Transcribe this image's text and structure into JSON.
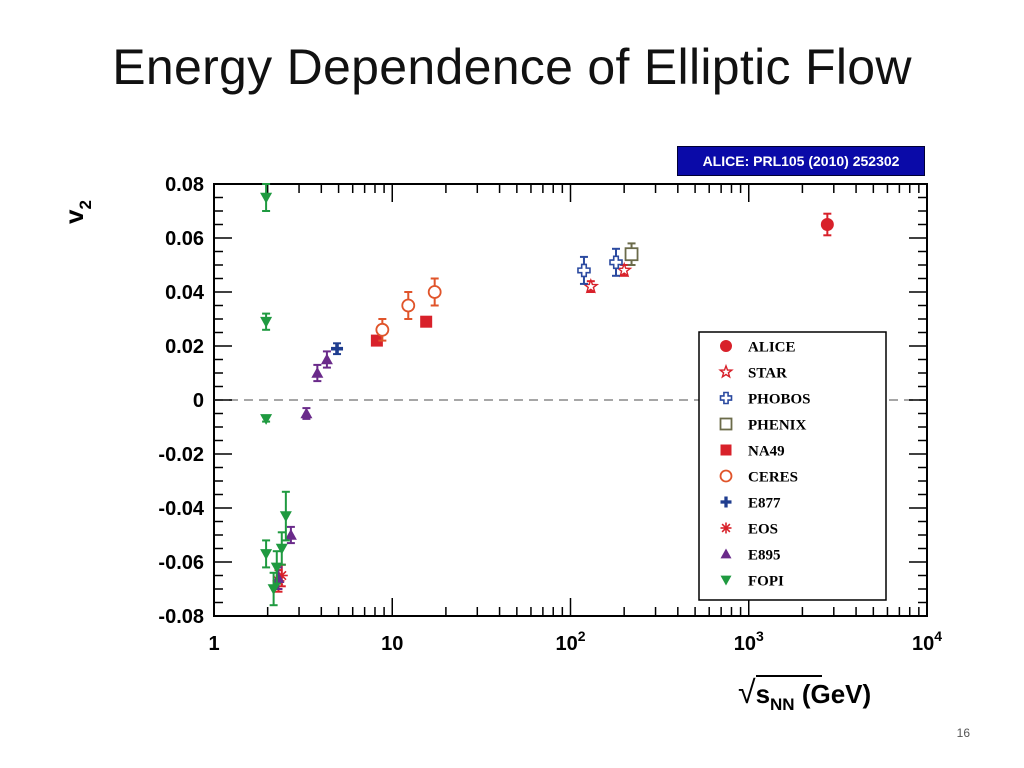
{
  "slide": {
    "title": "Energy Dependence of Elliptic Flow",
    "citation": "ALICE: PRL105 (2010) 252302",
    "page_number": "16"
  },
  "colors": {
    "ALICE": "#d8212a",
    "STAR": "#d8212a",
    "PHOBOS": "#2b4aa0",
    "PHENIX": "#6b6b4a",
    "NA49": "#d8212a",
    "CERES": "#e0542a",
    "E877": "#1f3d8f",
    "EOS": "#d8212a",
    "E895": "#6a2a8a",
    "FOPI": "#1f9a40",
    "axis": "#000000",
    "zero_line": "#888888",
    "citation_bg": "#0a0aa8"
  },
  "chart_data": {
    "type": "scatter",
    "xscale": "log",
    "xlim": [
      1,
      10000
    ],
    "ylim": [
      -0.08,
      0.08
    ],
    "xlabel": "√s_NN (GeV)",
    "ylabel": "v2",
    "x_ticks": [
      {
        "value": 1,
        "label": "1"
      },
      {
        "value": 10,
        "label": "10"
      },
      {
        "value": 100,
        "label": "10^2"
      },
      {
        "value": 1000,
        "label": "10^3"
      },
      {
        "value": 10000,
        "label": "10^4"
      }
    ],
    "y_ticks": [
      {
        "value": 0.08,
        "label": "0.08"
      },
      {
        "value": 0.06,
        "label": "0.06"
      },
      {
        "value": 0.04,
        "label": "0.04"
      },
      {
        "value": 0.02,
        "label": "0.02"
      },
      {
        "value": 0,
        "label": "0"
      },
      {
        "value": -0.02,
        "label": "-0.02"
      },
      {
        "value": -0.04,
        "label": "-0.04"
      },
      {
        "value": -0.06,
        "label": "-0.06"
      },
      {
        "value": -0.08,
        "label": "-0.08"
      }
    ],
    "zero_line": "dashed",
    "legend_position": "right",
    "series": [
      {
        "name": "ALICE",
        "marker": "circle-filled",
        "points": [
          {
            "x": 2760,
            "y": 0.065,
            "err": 0.004
          }
        ]
      },
      {
        "name": "STAR",
        "marker": "star-open",
        "points": [
          {
            "x": 130,
            "y": 0.042,
            "err": 0.002
          },
          {
            "x": 200,
            "y": 0.048,
            "err": 0.002
          }
        ]
      },
      {
        "name": "PHOBOS",
        "marker": "cross-open",
        "points": [
          {
            "x": 119,
            "y": 0.048,
            "err": 0.005
          },
          {
            "x": 180,
            "y": 0.051,
            "err": 0.005
          }
        ]
      },
      {
        "name": "PHENIX",
        "marker": "square-open",
        "points": [
          {
            "x": 220,
            "y": 0.054,
            "err": 0.004
          }
        ]
      },
      {
        "name": "NA49",
        "marker": "square-filled",
        "points": [
          {
            "x": 8.2,
            "y": 0.022,
            "err": 0.001
          },
          {
            "x": 15.5,
            "y": 0.029,
            "err": 0.001
          }
        ]
      },
      {
        "name": "CERES",
        "marker": "circle-open",
        "points": [
          {
            "x": 8.8,
            "y": 0.026,
            "err": 0.004
          },
          {
            "x": 12.3,
            "y": 0.035,
            "err": 0.005
          },
          {
            "x": 17.3,
            "y": 0.04,
            "err": 0.005
          }
        ]
      },
      {
        "name": "E877",
        "marker": "plus-filled",
        "points": [
          {
            "x": 4.9,
            "y": 0.019,
            "err": 0.002
          }
        ]
      },
      {
        "name": "EOS",
        "marker": "asterisk",
        "points": [
          {
            "x": 2.3,
            "y": -0.067,
            "err": 0.004
          },
          {
            "x": 2.4,
            "y": -0.065,
            "err": 0.004
          }
        ]
      },
      {
        "name": "E895",
        "marker": "triangle-up",
        "points": [
          {
            "x": 2.3,
            "y": -0.066,
            "err": 0.004
          },
          {
            "x": 2.7,
            "y": -0.05,
            "err": 0.003
          },
          {
            "x": 3.3,
            "y": -0.005,
            "err": 0.002
          },
          {
            "x": 3.8,
            "y": 0.01,
            "err": 0.003
          },
          {
            "x": 4.3,
            "y": 0.015,
            "err": 0.003
          }
        ]
      },
      {
        "name": "FOPI",
        "marker": "triangle-down",
        "points": [
          {
            "x": 1.96,
            "y": 0.075,
            "err": 0.005
          },
          {
            "x": 1.96,
            "y": 0.029,
            "err": 0.003
          },
          {
            "x": 1.96,
            "y": -0.007,
            "err": 0.001
          },
          {
            "x": 1.96,
            "y": -0.057,
            "err": 0.005
          },
          {
            "x": 2.16,
            "y": -0.07,
            "err": 0.006
          },
          {
            "x": 2.25,
            "y": -0.062,
            "err": 0.006
          },
          {
            "x": 2.4,
            "y": -0.055,
            "err": 0.006
          },
          {
            "x": 2.53,
            "y": -0.043,
            "err": 0.009
          }
        ]
      }
    ]
  }
}
